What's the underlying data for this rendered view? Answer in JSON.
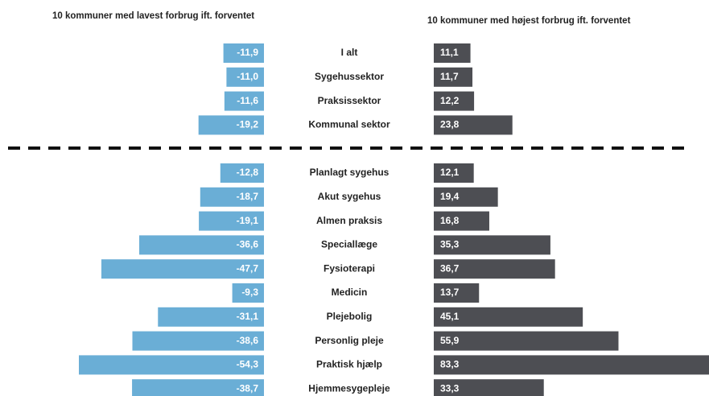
{
  "chart_data": {
    "type": "diverging-bar",
    "categories": [
      "I alt",
      "Sygehussektor",
      "Praksissektor",
      "Kommunal sektor",
      "Planlagt sygehus",
      "Akut sygehus",
      "Almen praksis",
      "Speciallæge",
      "Fysioterapi",
      "Medicin",
      "Plejebolig",
      "Personlig pleje",
      "Praktisk hjælp",
      "Hjemmesygepleje"
    ],
    "series": [
      {
        "name": "10 kommuner med lavest forbrug ift. forventet",
        "color": "#6aaed6",
        "values": [
          -11.9,
          -11.0,
          -11.6,
          -19.2,
          -12.8,
          -18.7,
          -19.1,
          -36.6,
          -47.7,
          -9.3,
          -31.1,
          -38.6,
          -54.3,
          -38.7
        ],
        "value_labels": [
          "-11,9",
          "-11,0",
          "-11,6",
          "-19,2",
          "-12,8",
          "-18,7",
          "-19,1",
          "-36,6",
          "-47,7",
          "-9,3",
          "-31,1",
          "-38,6",
          "-54,3",
          "-38,7"
        ]
      },
      {
        "name": "10 kommuner med højest forbrug ift. forventet",
        "color": "#4d4e53",
        "values": [
          11.1,
          11.7,
          12.2,
          23.8,
          12.1,
          19.4,
          16.8,
          35.3,
          36.7,
          13.7,
          45.1,
          55.9,
          83.3,
          33.3
        ],
        "value_labels": [
          "11,1",
          "11,7",
          "12,2",
          "23,8",
          "12,1",
          "19,4",
          "16,8",
          "35,3",
          "36,7",
          "13,7",
          "45,1",
          "55,9",
          "83,3",
          "33,3"
        ]
      }
    ]
  }
}
